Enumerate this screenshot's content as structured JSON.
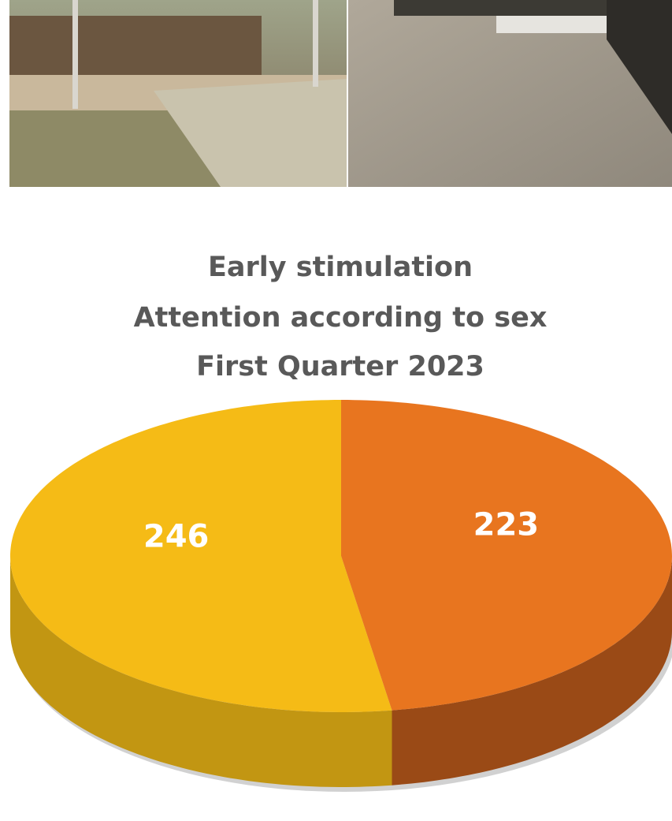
{
  "chart_data": {
    "type": "pie",
    "title": [
      "Early stimulation",
      "Attention according to sex",
      "First Quarter 2023"
    ],
    "values": [
      223,
      246
    ],
    "colors": [
      "#e8751f",
      "#f5bb16"
    ],
    "side_colors": [
      "#9a4a16",
      "#c29612"
    ]
  }
}
